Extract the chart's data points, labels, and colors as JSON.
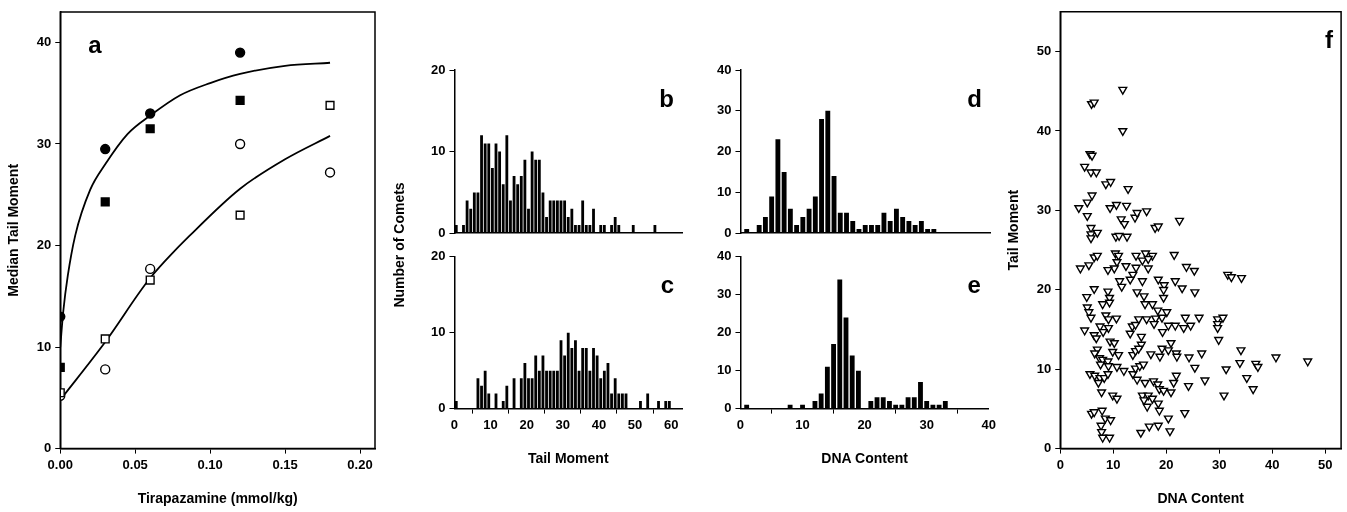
{
  "chart_data": [
    {
      "type": "scatter",
      "title": "a",
      "xlabel": "Tirapazamine (mmol/kg)",
      "ylabel": "Median Tail Moment",
      "xlim": [
        0,
        0.21
      ],
      "ylim": [
        0,
        43
      ],
      "xticks": [
        {
          "value": 0,
          "label": "0.00"
        },
        {
          "value": 0.05,
          "label": "0.05"
        },
        {
          "value": 0.1,
          "label": "0.10"
        },
        {
          "value": 0.15,
          "label": "0.15"
        },
        {
          "value": 0.2,
          "label": "0.20"
        }
      ],
      "yticks": [
        0,
        10,
        20,
        30,
        40
      ],
      "series": [
        {
          "type": "scatter",
          "marker": "circle",
          "color": "#000000",
          "x": [
            0,
            0.03,
            0.06,
            0.12
          ],
          "values": [
            13,
            29.5,
            33,
            39
          ]
        },
        {
          "type": "scatter",
          "marker": "square",
          "color": "#000000",
          "x": [
            0,
            0.03,
            0.06,
            0.12
          ],
          "values": [
            8,
            24.3,
            31.5,
            34.3
          ]
        },
        {
          "type": "scatter",
          "marker": "circle",
          "color": "#ffffff",
          "x": [
            0,
            0.03,
            0.06,
            0.12,
            0.18
          ],
          "values": [
            5.2,
            7.8,
            17.7,
            30,
            27.2
          ]
        },
        {
          "type": "scatter",
          "marker": "square",
          "color": "#ffffff",
          "x": [
            0,
            0.03,
            0.06,
            0.12,
            0.18
          ],
          "values": [
            5.5,
            10.8,
            16.6,
            23,
            33.8
          ]
        },
        {
          "type": "line",
          "marker": "none",
          "color": "#000000",
          "x": [
            0,
            0.002,
            0.005,
            0.01,
            0.02,
            0.03,
            0.045,
            0.06,
            0.08,
            0.1,
            0.12,
            0.15,
            0.18
          ],
          "values": [
            10,
            13.5,
            17,
            21,
            25.5,
            28,
            31,
            32.8,
            34.8,
            36,
            36.9,
            37.7,
            38
          ]
        },
        {
          "type": "line",
          "marker": "none",
          "color": "#000000",
          "x": [
            0,
            0.03,
            0.06,
            0.09,
            0.12,
            0.15,
            0.18
          ],
          "values": [
            4.8,
            10.5,
            16.8,
            21.5,
            25.6,
            28.5,
            30.8
          ]
        }
      ]
    },
    {
      "type": "histogram",
      "title": "b",
      "ylabel": "Number of Comets",
      "color": "#000000",
      "xlim": [
        0,
        63
      ],
      "ylim": [
        0,
        20
      ],
      "yticks": [
        0,
        10,
        20
      ],
      "tick_labels": "y",
      "bins": [
        0,
        1,
        2,
        3,
        4,
        5,
        6,
        7,
        8,
        9,
        10,
        11,
        12,
        13,
        14,
        15,
        16,
        17,
        18,
        19,
        20,
        21,
        22,
        23,
        24,
        25,
        26,
        27,
        28,
        29,
        30,
        31,
        32,
        33,
        34,
        35,
        36,
        37,
        38,
        39,
        40,
        41,
        42,
        43,
        44,
        45,
        46,
        47,
        48,
        49,
        50,
        51,
        52,
        53,
        54,
        55,
        56
      ],
      "values": [
        1,
        0,
        1,
        4,
        3,
        5,
        5,
        12,
        11,
        11,
        8,
        11,
        10,
        6,
        12,
        4,
        7,
        6,
        7,
        9,
        3,
        10,
        9,
        9,
        5,
        2,
        4,
        4,
        4,
        4,
        4,
        2,
        3,
        1,
        1,
        4,
        1,
        1,
        3,
        0,
        1,
        1,
        0,
        1,
        2,
        1,
        0,
        0,
        0,
        1,
        0,
        0,
        0,
        0,
        0,
        1
      ]
    },
    {
      "type": "histogram",
      "title": "c",
      "xlabel": "Tail Moment",
      "color": "#000000",
      "xlim": [
        0,
        63
      ],
      "ylim": [
        0,
        20
      ],
      "xticks": [
        0,
        10,
        20,
        30,
        40,
        50,
        60
      ],
      "yticks": [
        0,
        10,
        20
      ],
      "bins": [
        0,
        1,
        2,
        3,
        4,
        5,
        6,
        7,
        8,
        9,
        10,
        11,
        12,
        13,
        14,
        15,
        16,
        17,
        18,
        19,
        20,
        21,
        22,
        23,
        24,
        25,
        26,
        27,
        28,
        29,
        30,
        31,
        32,
        33,
        34,
        35,
        36,
        37,
        38,
        39,
        40,
        41,
        42,
        43,
        44,
        45,
        46,
        47,
        48,
        49,
        50,
        51,
        52,
        53,
        54,
        55,
        56,
        57,
        58,
        59,
        60
      ],
      "values": [
        1,
        0,
        0,
        0,
        0,
        0,
        4,
        3,
        5,
        2,
        0,
        2,
        0,
        1,
        3,
        0,
        4,
        0,
        4,
        6,
        4,
        4,
        7,
        5,
        7,
        5,
        5,
        5,
        5,
        9,
        7,
        10,
        8,
        9,
        5,
        8,
        8,
        5,
        8,
        7,
        4,
        5,
        6,
        2,
        4,
        2,
        2,
        2,
        0,
        0,
        0,
        1,
        0,
        2,
        0,
        0,
        1,
        0,
        1,
        1
      ]
    },
    {
      "type": "histogram",
      "title": "d",
      "color": "#000000",
      "xlim": [
        0,
        40
      ],
      "ylim": [
        0,
        40
      ],
      "yticks": [
        0,
        10,
        20,
        30,
        40
      ],
      "tick_labels": "y",
      "bins": [
        0.5,
        1.5,
        2.5,
        3.5,
        4.5,
        5.5,
        6.5,
        7.5,
        8.5,
        9.5,
        10.5,
        11.5,
        12.5,
        13.5,
        14.5,
        15.5,
        16.5,
        17.5,
        18.5,
        19.5,
        20.5,
        21.5,
        22.5,
        23.5,
        24.5,
        25.5,
        26.5,
        27.5,
        28.5,
        29.5,
        30.5,
        31.5
      ],
      "values": [
        1,
        0,
        2,
        4,
        9,
        23,
        15,
        6,
        2,
        4,
        6,
        9,
        28,
        30,
        14,
        5,
        5,
        3,
        1,
        2,
        2,
        2,
        5,
        3,
        6,
        4,
        3,
        2,
        3,
        1,
        1
      ]
    },
    {
      "type": "histogram",
      "title": "e",
      "xlabel": "DNA Content",
      "color": "#000000",
      "xlim": [
        0,
        40
      ],
      "ylim": [
        0,
        40
      ],
      "xticks": [
        0,
        10,
        20,
        30,
        40
      ],
      "yticks": [
        0,
        10,
        20,
        30,
        40
      ],
      "bins": [
        0.5,
        1.5,
        2.5,
        3.5,
        4.5,
        5.5,
        6.5,
        7.5,
        8.5,
        9.5,
        10.5,
        11.5,
        12.5,
        13.5,
        14.5,
        15.5,
        16.5,
        17.5,
        18.5,
        19.5,
        20.5,
        21.5,
        22.5,
        23.5,
        24.5,
        25.5,
        26.5,
        27.5,
        28.5,
        29.5,
        30.5,
        31.5,
        32.5,
        33.5
      ],
      "values": [
        1,
        0,
        0,
        0,
        0,
        0,
        0,
        1,
        0,
        1,
        0,
        2,
        4,
        11,
        17,
        34,
        24,
        14,
        10,
        0,
        2,
        3,
        3,
        2,
        1,
        1,
        3,
        3,
        7,
        2,
        1,
        1,
        2
      ]
    },
    {
      "type": "scatter",
      "title": "f",
      "xlabel": "DNA Content",
      "ylabel": "Tail Moment",
      "xlim": [
        0,
        53
      ],
      "ylim": [
        0,
        55
      ],
      "xticks": [
        0,
        10,
        20,
        30,
        40,
        50
      ],
      "yticks": [
        0,
        10,
        20,
        30,
        40,
        50
      ],
      "series": [
        {
          "type": "scatter",
          "marker": "triangle",
          "color": "#ffffff",
          "x": [
            11.8,
            5.9,
            6.4,
            11.8,
            5.6,
            6.0,
            4.6,
            5.8,
            6.8,
            8.6,
            9.5,
            12.8,
            6.0,
            5.1,
            3.5,
            9.4,
            10.6,
            12.5,
            5.1,
            11.5,
            12.1,
            14.1,
            14.5,
            16.3,
            22.5,
            17.9,
            18.5,
            5.8,
            5.8,
            7.0,
            5.8,
            10.5,
            11.1,
            12.6,
            6.4,
            7.0,
            5.4,
            3.8,
            10.4,
            11.0,
            10.7,
            10.2,
            9.0,
            12.4,
            14.3,
            16.1,
            17.4,
            15.5,
            16.6,
            14.3,
            13.7,
            13.2,
            16.6,
            11.2,
            11.6,
            15.5,
            21.5,
            23.8,
            25.3,
            18.5,
            21.7,
            19.6,
            31.6,
            32.3,
            34.2,
            6.4,
            9.0,
            9.3,
            5.0,
            8.0,
            9.3,
            19.5,
            23.0,
            25.4,
            14.5,
            15.8,
            19.5,
            16.0,
            17.4,
            5.1,
            5.4,
            5.8,
            8.6,
            9.1,
            10.6,
            7.5,
            9.1,
            8.1,
            4.6,
            6.4,
            6.8,
            9.4,
            10.2,
            18.4,
            20.1,
            19.2,
            18.0,
            16.3,
            14.8,
            17.7,
            13.6,
            14.2,
            20.4,
            21.7,
            19.3,
            23.6,
            26.2,
            24.6,
            23.3,
            29.7,
            30.7,
            29.7,
            29.7,
            29.9,
            13.2,
            15.3,
            15.3,
            7.0,
            6.5,
            9.9,
            11.0,
            13.7,
            14.2,
            14.8,
            17.1,
            18.8,
            19.2,
            20.9,
            20.4,
            21.9,
            22.0,
            24.3,
            26.7,
            34.1,
            40.7,
            46.7,
            33.9,
            36.9,
            37.3,
            31.3,
            25.4,
            35.2,
            36.4,
            30.9,
            7.4,
            8.0,
            7.6,
            9.0,
            9.1,
            10.7,
            12.0,
            13.7,
            14.2,
            15.0,
            15.7,
            5.6,
            6.5,
            7.5,
            8.3,
            7.2,
            7.8,
            9.0,
            14.5,
            16.0,
            17.6,
            18.4,
            18.7,
            19.5,
            20.9,
            21.9,
            21.4,
            24.2,
            27.3,
            15.5,
            16.6,
            17.4,
            15.8,
            16.4,
            18.5,
            9.9,
            10.7,
            5.9,
            6.4,
            7.9,
            8.5,
            9.5,
            7.7,
            7.8,
            8.0,
            9.3,
            18.7,
            20.4,
            23.5,
            16.8,
            18.5,
            15.2,
            20.7
          ],
          "values": [
            45.2,
            43.4,
            43.6,
            40.0,
            37.1,
            36.9,
            35.5,
            34.8,
            34.8,
            33.3,
            33.6,
            32.7,
            31.9,
            31.0,
            30.3,
            30.3,
            30.7,
            30.6,
            29.3,
            28.9,
            28.3,
            29.1,
            29.7,
            29.9,
            28.7,
            27.8,
            28.0,
            27.8,
            27.0,
            27.2,
            26.5,
            26.7,
            26.8,
            26.7,
            24.1,
            24.3,
            23.1,
            22.7,
            24.6,
            24.3,
            23.5,
            22.7,
            22.5,
            23.0,
            24.3,
            24.6,
            24.3,
            23.7,
            23.9,
            22.8,
            21.9,
            21.3,
            22.7,
            21.1,
            20.4,
            21.1,
            24.4,
            22.9,
            22.4,
            21.3,
            21.1,
            20.6,
            21.9,
            21.6,
            21.5,
            20.1,
            19.8,
            19.0,
            19.1,
            18.2,
            18.4,
            20.0,
            20.2,
            19.7,
            19.7,
            19.2,
            19.0,
            18.2,
            18.2,
            17.8,
            17.2,
            16.5,
            16.8,
            16.3,
            16.4,
            15.4,
            15.2,
            14.7,
            14.9,
            14.3,
            13.9,
            13.5,
            13.3,
            17.4,
            17.2,
            16.5,
            16.4,
            16.3,
            16.3,
            15.7,
            15.4,
            15.6,
            15.5,
            15.5,
            14.7,
            16.5,
            16.5,
            15.5,
            15.2,
            16.3,
            16.5,
            15.7,
            15.2,
            13.7,
            14.5,
            14.1,
            13.1,
            12.5,
            12.0,
            12.2,
            11.8,
            11.8,
            12.3,
            12.6,
            11.9,
            11.6,
            12.6,
            13.3,
            12.4,
            12.0,
            11.6,
            11.5,
            12.0,
            12.4,
            11.5,
            11.0,
            10.8,
            10.7,
            10.3,
            10.0,
            10.2,
            8.9,
            7.5,
            6.7,
            11.4,
            11.2,
            10.6,
            11.0,
            10.4,
            10.3,
            9.8,
            9.4,
            10.1,
            10.4,
            10.6,
            9.4,
            9.2,
            8.9,
            8.9,
            8.3,
            7.1,
            9.4,
            8.7,
            8.3,
            8.5,
            8.1,
            7.5,
            7.3,
            7.1,
            9.2,
            8.3,
            7.9,
            8.6,
            6.7,
            6.7,
            6.3,
            6.1,
            5.3,
            5.7,
            6.7,
            6.3,
            4.4,
            4.6,
            4.8,
            3.8,
            3.6,
            2.9,
            2.1,
            1.4,
            1.4,
            4.8,
            3.8,
            4.5,
            2.8,
            2.9,
            2.0,
            2.2
          ]
        }
      ]
    }
  ]
}
